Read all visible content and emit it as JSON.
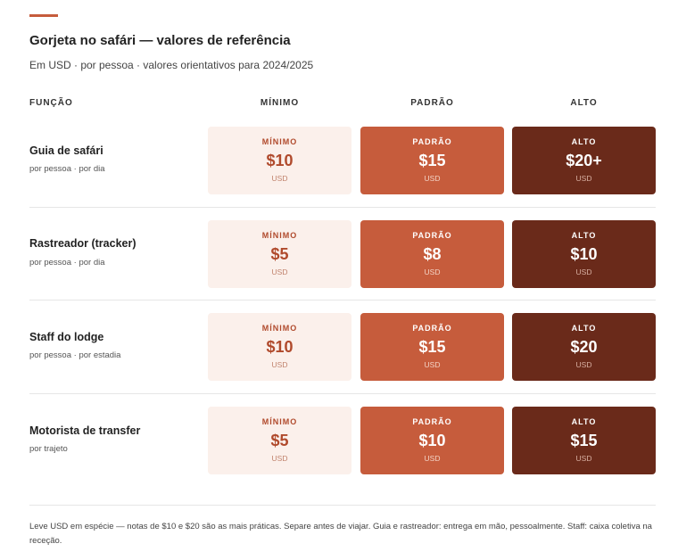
{
  "page": {
    "title": "Gorjeta no safári — valores de referência",
    "subtitle": "Em USD · por pessoa · valores orientativos para 2024/2025"
  },
  "columns": {
    "role": "FUNÇÃO",
    "min": "MÍNIMO",
    "std": "PADRÃO",
    "high": "ALTO"
  },
  "colors": {
    "accent": "#c65c3c",
    "min_bg": "#fbf0eb",
    "std_bg": "#c65c3c",
    "high_bg": "#6a2a1a"
  },
  "rows": [
    {
      "name": "Guia de safári",
      "note": "por pessoa · por dia",
      "min": {
        "label": "MÍNIMO",
        "amount": "$10",
        "currency": "USD"
      },
      "std": {
        "label": "PADRÃO",
        "amount": "$15",
        "currency": "USD"
      },
      "high": {
        "label": "ALTO",
        "amount": "$20+",
        "currency": "USD"
      }
    },
    {
      "name": "Rastreador (tracker)",
      "note": "por pessoa · por dia",
      "min": {
        "label": "MÍNIMO",
        "amount": "$5",
        "currency": "USD"
      },
      "std": {
        "label": "PADRÃO",
        "amount": "$8",
        "currency": "USD"
      },
      "high": {
        "label": "ALTO",
        "amount": "$10",
        "currency": "USD"
      }
    },
    {
      "name": "Staff do lodge",
      "note": "por pessoa · por estadia",
      "min": {
        "label": "MÍNIMO",
        "amount": "$10",
        "currency": "USD"
      },
      "std": {
        "label": "PADRÃO",
        "amount": "$15",
        "currency": "USD"
      },
      "high": {
        "label": "ALTO",
        "amount": "$20",
        "currency": "USD"
      }
    },
    {
      "name": "Motorista de transfer",
      "note": "por trajeto",
      "min": {
        "label": "MÍNIMO",
        "amount": "$5",
        "currency": "USD"
      },
      "std": {
        "label": "PADRÃO",
        "amount": "$10",
        "currency": "USD"
      },
      "high": {
        "label": "ALTO",
        "amount": "$15",
        "currency": "USD"
      }
    }
  ],
  "footer": "Leve USD em espécie — notas de $10 e $20 são as mais práticas. Separe antes de viajar. Guia e rastreador: entrega em mão, pessoalmente. Staff: caixa coletiva na receção."
}
